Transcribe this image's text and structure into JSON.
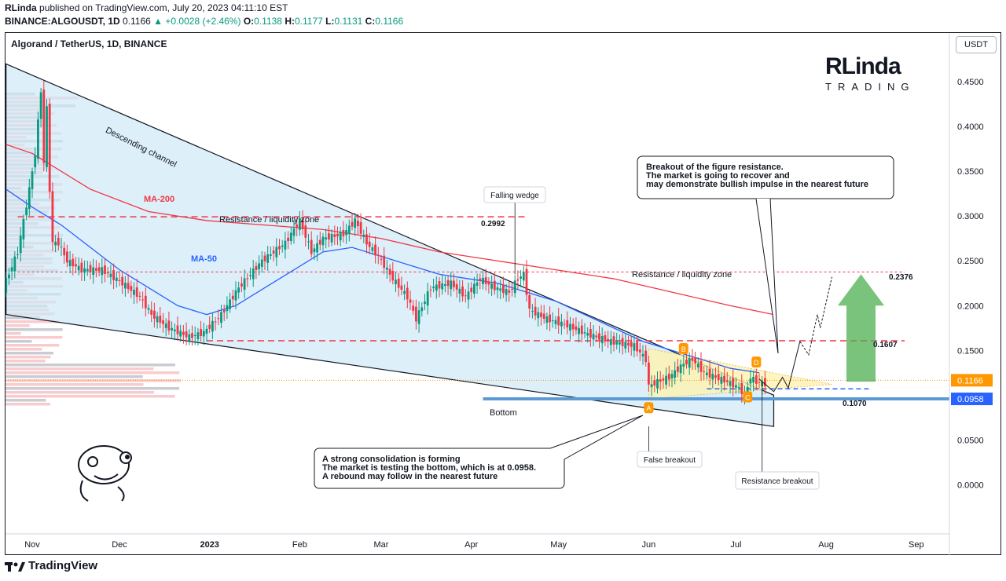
{
  "header": {
    "author": "RLinda",
    "published": "published on TradingView.com, July 20, 2023 04:11:10 EST",
    "symbol": "BINANCE:ALGOUSDT, 1D",
    "price": "0.1166",
    "change": "+0.0028 (+2.46%)",
    "ohlc": {
      "o_label": "O:",
      "o": "0.1138",
      "h_label": "H:",
      "h": "0.1177",
      "l_label": "L:",
      "l": "0.1131",
      "c_label": "C:",
      "c": "0.1166"
    }
  },
  "chart_title": "Algorand / TetherUS, 1D, BINANCE",
  "currency_badge": "USDT",
  "logo": {
    "main": "RLinda",
    "sub": "TRADING"
  },
  "footer": {
    "brand": "TradingView"
  },
  "colors": {
    "bull": "#089981",
    "bear": "#f23645",
    "ma200": "#f23645",
    "ma50": "#2962ff",
    "channel_fill": "#cfe8f7",
    "wedge_fill": "#fff3b0",
    "bottom_line": "#5b9bd5",
    "accent": "#ff9800"
  },
  "chart_data": {
    "type": "candlestick",
    "ylim": [
      -0.055,
      0.48
    ],
    "x_ticks": [
      {
        "label": "Nov",
        "d": 0
      },
      {
        "label": "Dec",
        "d": 30
      },
      {
        "label": "2023",
        "d": 61
      },
      {
        "label": "Feb",
        "d": 92
      },
      {
        "label": "Mar",
        "d": 120
      },
      {
        "label": "Apr",
        "d": 151
      },
      {
        "label": "May",
        "d": 181
      },
      {
        "label": "Jun",
        "d": 212
      },
      {
        "label": "Jul",
        "d": 242
      },
      {
        "label": "Aug",
        "d": 273
      },
      {
        "label": "Sep",
        "d": 304
      }
    ],
    "y_ticks": [
      0.0,
      0.05,
      0.1,
      0.15,
      0.2,
      0.25,
      0.3,
      0.35,
      0.4,
      0.45
    ],
    "y_tick_labels": [
      "0.0000",
      "0.0500",
      "0.1000",
      "0.1500",
      "0.2000",
      "0.2500",
      "0.3000",
      "0.3500",
      "0.4000",
      "0.4500"
    ],
    "price_path": [
      [
        -9,
        0.22
      ],
      [
        -4,
        0.26
      ],
      [
        0,
        0.33
      ],
      [
        2,
        0.37
      ],
      [
        4,
        0.44
      ],
      [
        5,
        0.36
      ],
      [
        6,
        0.42
      ],
      [
        7,
        0.33
      ],
      [
        8,
        0.27
      ],
      [
        10,
        0.27
      ],
      [
        13,
        0.25
      ],
      [
        18,
        0.24
      ],
      [
        25,
        0.24
      ],
      [
        32,
        0.225
      ],
      [
        38,
        0.21
      ],
      [
        42,
        0.19
      ],
      [
        48,
        0.175
      ],
      [
        55,
        0.165
      ],
      [
        60,
        0.17
      ],
      [
        66,
        0.19
      ],
      [
        72,
        0.22
      ],
      [
        80,
        0.25
      ],
      [
        88,
        0.27
      ],
      [
        93,
        0.295
      ],
      [
        97,
        0.26
      ],
      [
        101,
        0.275
      ],
      [
        108,
        0.28
      ],
      [
        112,
        0.295
      ],
      [
        116,
        0.27
      ],
      [
        120,
        0.255
      ],
      [
        125,
        0.23
      ],
      [
        130,
        0.21
      ],
      [
        133,
        0.185
      ],
      [
        138,
        0.22
      ],
      [
        145,
        0.225
      ],
      [
        150,
        0.21
      ],
      [
        155,
        0.23
      ],
      [
        160,
        0.22
      ],
      [
        165,
        0.215
      ],
      [
        168,
        0.23
      ],
      [
        170,
        0.235
      ],
      [
        172,
        0.195
      ],
      [
        178,
        0.185
      ],
      [
        185,
        0.178
      ],
      [
        192,
        0.168
      ],
      [
        200,
        0.16
      ],
      [
        208,
        0.155
      ],
      [
        212,
        0.14
      ],
      [
        213,
        0.11
      ],
      [
        216,
        0.115
      ],
      [
        220,
        0.12
      ],
      [
        225,
        0.135
      ],
      [
        228,
        0.14
      ],
      [
        232,
        0.125
      ],
      [
        236,
        0.12
      ],
      [
        240,
        0.115
      ],
      [
        244,
        0.108
      ],
      [
        246,
        0.1
      ],
      [
        248,
        0.12
      ],
      [
        250,
        0.115
      ],
      [
        252,
        0.113
      ]
    ],
    "ma200": [
      [
        -9,
        0.38
      ],
      [
        0,
        0.37
      ],
      [
        20,
        0.33
      ],
      [
        40,
        0.305
      ],
      [
        60,
        0.295
      ],
      [
        80,
        0.29
      ],
      [
        100,
        0.285
      ],
      [
        120,
        0.275
      ],
      [
        140,
        0.26
      ],
      [
        160,
        0.25
      ],
      [
        180,
        0.24
      ],
      [
        200,
        0.23
      ],
      [
        220,
        0.215
      ],
      [
        240,
        0.2
      ],
      [
        255,
        0.19
      ]
    ],
    "ma50": [
      [
        -9,
        0.33
      ],
      [
        0,
        0.31
      ],
      [
        10,
        0.29
      ],
      [
        20,
        0.265
      ],
      [
        30,
        0.24
      ],
      [
        40,
        0.22
      ],
      [
        50,
        0.2
      ],
      [
        60,
        0.19
      ],
      [
        70,
        0.2
      ],
      [
        80,
        0.22
      ],
      [
        90,
        0.24
      ],
      [
        100,
        0.26
      ],
      [
        110,
        0.265
      ],
      [
        120,
        0.255
      ],
      [
        130,
        0.245
      ],
      [
        140,
        0.235
      ],
      [
        150,
        0.23
      ],
      [
        160,
        0.225
      ],
      [
        170,
        0.215
      ],
      [
        180,
        0.205
      ],
      [
        190,
        0.19
      ],
      [
        200,
        0.175
      ],
      [
        210,
        0.16
      ],
      [
        220,
        0.15
      ],
      [
        230,
        0.14
      ],
      [
        240,
        0.13
      ],
      [
        250,
        0.125
      ]
    ],
    "channel_upper": [
      [
        -9,
        0.47
      ],
      [
        255,
        0.1
      ]
    ],
    "channel_lower": [
      [
        -9,
        0.19
      ],
      [
        255,
        0.065
      ]
    ],
    "levels": [
      {
        "value": 0.2992,
        "label": "0.2992",
        "zone": "Resistance / liquidity zone",
        "style": "dashed-red"
      },
      {
        "value": 0.2376,
        "label": "0.2376",
        "zone": "Resistance / liquidity zone",
        "style": "dotted-red"
      },
      {
        "value": 0.1607,
        "label": "0.1607",
        "style": "dashed-red"
      },
      {
        "value": 0.107,
        "label": "0.1070",
        "style": "dashed-blue"
      },
      {
        "value": 0.0958,
        "label": "0.0958",
        "style": "solid-blue",
        "name": "Bottom"
      }
    ],
    "last_price": {
      "value": 0.1166,
      "label": "0.1166"
    },
    "bottom_price": {
      "value": 0.0958,
      "label": "0.0958"
    },
    "labels": {
      "channel": "Descending channel",
      "ma200": "MA-200",
      "ma50": "MA-50",
      "wedge": "Falling wedge",
      "bottom": "Bottom",
      "false_breakout": "False breakout",
      "resistance_breakout": "Resistance breakout",
      "points": [
        "A",
        "B",
        "C",
        "D"
      ]
    },
    "callouts": {
      "top": [
        "Breakout of the figure resistance.",
        "The market is going to recover and",
        "may demonstrate bullish impulse in the nearest future"
      ],
      "bottom": [
        "A strong consolidation is forming",
        "The market is testing the bottom, which is at 0.0958.",
        "A rebound may follow in the nearest future"
      ]
    }
  }
}
